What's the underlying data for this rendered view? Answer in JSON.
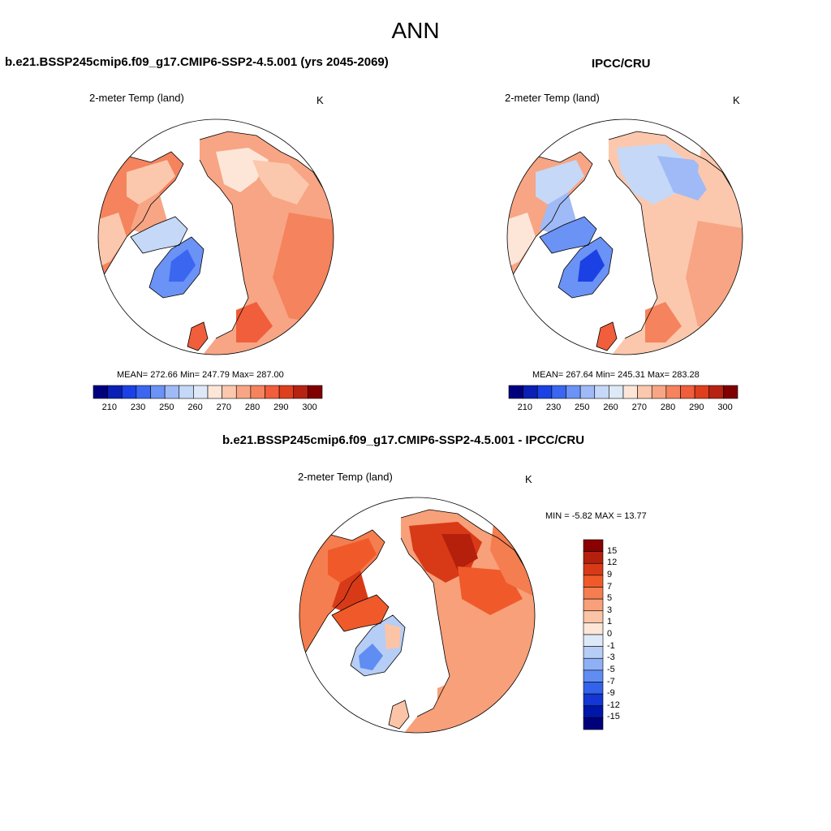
{
  "title": "ANN",
  "panels": [
    {
      "title": "b.e21.BSSP245cmip6.f09_g17.CMIP6-SSP2-4.5.001 (yrs 2045-2069)",
      "variable": "2-meter Temp (land)",
      "units": "K",
      "stats": "MEAN= 272.66  Min= 247.79  Max= 287.00",
      "colorbar_labels": [
        "210",
        "230",
        "250",
        "260",
        "270",
        "280",
        "290",
        "300"
      ]
    },
    {
      "title": "IPCC/CRU",
      "variable": "2-meter Temp (land)",
      "units": "K",
      "stats": "MEAN= 267.64  Min= 245.31  Max= 283.28",
      "colorbar_labels": [
        "210",
        "230",
        "250",
        "260",
        "270",
        "280",
        "290",
        "300"
      ]
    },
    {
      "title": "b.e21.BSSP245cmip6.f09_g17.CMIP6-SSP2-4.5.001 - IPCC/CRU",
      "variable": "2-meter Temp (land)",
      "units": "K",
      "stats": "MIN =  -5.82 MAX =  13.77",
      "colorbar_labels": [
        "15",
        "12",
        "9",
        "7",
        "5",
        "3",
        "1",
        "0",
        "-1",
        "-3",
        "-5",
        "-7",
        "-9",
        "-12",
        "-15"
      ]
    }
  ],
  "colors": {
    "abs_scale": [
      "#00007e",
      "#0a1fb4",
      "#1b41e4",
      "#3a66f0",
      "#6b92f5",
      "#9fbaf6",
      "#c5d8f7",
      "#dee9f8",
      "#fde6d8",
      "#fbc8ad",
      "#f7a584",
      "#f4835e",
      "#f05e3b",
      "#de3f1d",
      "#b72313",
      "#800000"
    ],
    "diff_scale": [
      "#8b0000",
      "#b5200c",
      "#d83a17",
      "#f05a2a",
      "#f47e4f",
      "#f7a07a",
      "#fbc4a6",
      "#fde6d8",
      "#dee9f8",
      "#b6cdf6",
      "#8fb0f5",
      "#5f8df2",
      "#3363ea",
      "#1337d4",
      "#0016a8",
      "#00007a"
    ]
  }
}
